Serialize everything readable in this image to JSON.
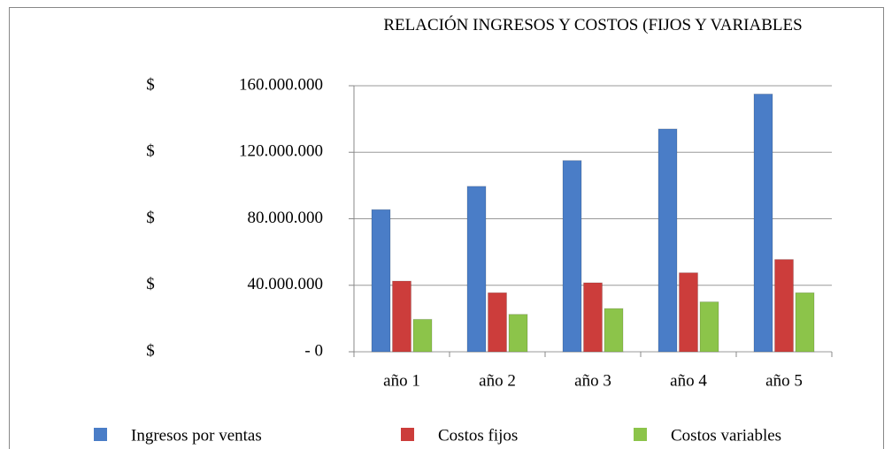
{
  "chart_data": {
    "type": "bar",
    "title": "RELACIÓN INGRESOS Y COSTOS (FIJOS Y VARIABLES",
    "currency_symbol": "$",
    "categories": [
      "año 1",
      "año 2",
      "año 3",
      "año 4",
      "año 5"
    ],
    "series": [
      {
        "name": "Ingresos por ventas",
        "color": "#4a7dc7",
        "values": [
          85500000,
          99500000,
          115000000,
          134000000,
          155000000
        ]
      },
      {
        "name": "Costos fijos",
        "color": "#cc3d3b",
        "values": [
          42500000,
          35500000,
          41500000,
          47500000,
          55500000
        ]
      },
      {
        "name": "Costos variables",
        "color": "#8cc44a",
        "values": [
          19500000,
          22500000,
          26000000,
          30000000,
          35500000
        ]
      }
    ],
    "ylim": [
      0,
      160000000
    ],
    "yticks": [
      {
        "value": 0,
        "label": "- 0"
      },
      {
        "value": 40000000,
        "label": "40.000.000"
      },
      {
        "value": 80000000,
        "label": "80.000.000"
      },
      {
        "value": 120000000,
        "label": "120.000.000"
      },
      {
        "value": 160000000,
        "label": "160.000.000"
      }
    ],
    "grid": true,
    "legend": "bottom"
  }
}
